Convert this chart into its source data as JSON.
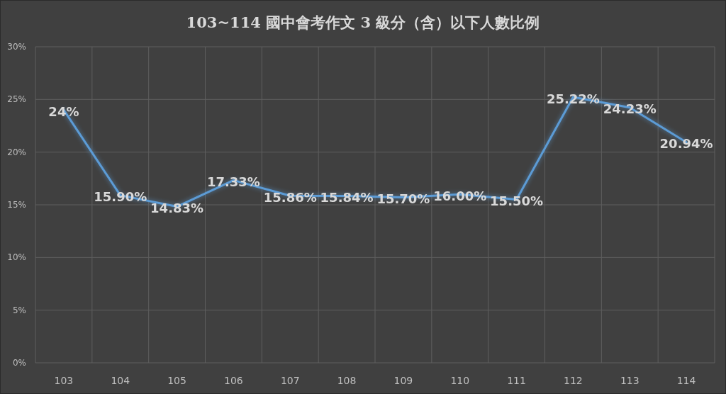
{
  "chart_data": {
    "type": "line",
    "title": "103~114 國中會考作文 3 級分（含）以下人數比例",
    "categories": [
      "103",
      "104",
      "105",
      "106",
      "107",
      "108",
      "109",
      "110",
      "111",
      "112",
      "113",
      "114"
    ],
    "series": [
      {
        "color": "#5b9bd5",
        "values": [
          24,
          15.9,
          14.83,
          17.33,
          15.86,
          15.84,
          15.7,
          16,
          15.5,
          25.22,
          24.23,
          20.94
        ],
        "value_labels": [
          "24%",
          "15.90%",
          "14.83%",
          "17.33%",
          "15.86%",
          "15.84%",
          "15.70%",
          "16.00%",
          "15.50%",
          "25.22%",
          "24.23%",
          "20.94%"
        ]
      }
    ],
    "ylim": [
      0,
      30
    ],
    "yticks": [
      {
        "value": 0,
        "label": "0%"
      },
      {
        "value": 5,
        "label": "5%"
      },
      {
        "value": 10,
        "label": "10%"
      },
      {
        "value": 15,
        "label": "15%"
      },
      {
        "value": 20,
        "label": "20%"
      },
      {
        "value": 25,
        "label": "25%"
      },
      {
        "value": 30,
        "label": "30%"
      }
    ],
    "grid": true,
    "line_style": "solid"
  }
}
